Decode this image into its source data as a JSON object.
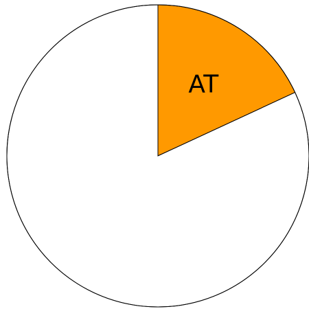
{
  "chart_data": {
    "type": "pie",
    "title": "",
    "slices": [
      {
        "label": "AT",
        "value": 0.181,
        "color": "#ff9900"
      },
      {
        "label": "",
        "value": 0.819,
        "color": "#ffffff"
      }
    ],
    "start_angle": "12 o'clock",
    "direction": "clockwise",
    "legend": "none"
  }
}
